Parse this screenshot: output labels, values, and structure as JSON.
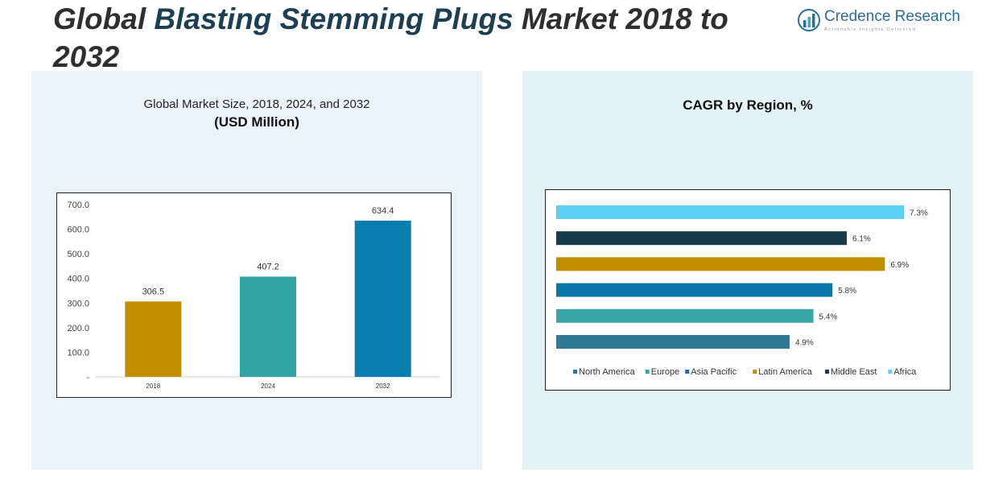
{
  "page": {
    "title_part1": "Global",
    "title_part2": "Blasting Stemming Plugs",
    "title_part3": "Market 2018 to 2032"
  },
  "logo": {
    "icon": "credence-chart-icon",
    "name": "Credence Research",
    "tagline": "Actionable Insights Delivered"
  },
  "colors": {
    "panel_left": "#e9f3f8",
    "panel_right": "#e3f3f3"
  },
  "chart_data": [
    {
      "type": "bar",
      "title": "Global Market Size, 2018, 2024, and 2032",
      "subtitle": "(USD Million)",
      "categories": [
        "2018",
        "2024",
        "2032"
      ],
      "values": [
        306.5,
        407.2,
        634.4
      ],
      "value_labels": [
        "306.5",
        "407.2",
        "634.4"
      ],
      "colors": [
        "#c08f00",
        "#33a4a4",
        "#0b7eb0"
      ],
      "ylim": [
        0,
        700
      ],
      "yticks": [
        0,
        100,
        200,
        300,
        400,
        500,
        600,
        700
      ],
      "ytick_labels": [
        "-",
        "100.0",
        "200.0",
        "300.0",
        "400.0",
        "500.0",
        "600.0",
        "700.0"
      ],
      "xlabel": "",
      "ylabel": "",
      "grid": false
    },
    {
      "type": "bar",
      "orientation": "horizontal",
      "title": "CAGR by Region, %",
      "categories": [
        "North America",
        "Europe",
        "Asia Pacific",
        "Latin America",
        "Middle East",
        "Africa"
      ],
      "values": [
        4.9,
        5.4,
        5.8,
        6.9,
        6.1,
        7.3
      ],
      "value_labels": [
        "4.9%",
        "5.4%",
        "5.8%",
        "6.9%",
        "6.1%",
        "7.3%"
      ],
      "colors": [
        "#2e7a96",
        "#38a6a6",
        "#0a77a8",
        "#c08f00",
        "#163b4a",
        "#5dd0f5"
      ],
      "xlim": [
        0,
        7.3
      ],
      "legend": "bottom",
      "grid": false
    }
  ]
}
